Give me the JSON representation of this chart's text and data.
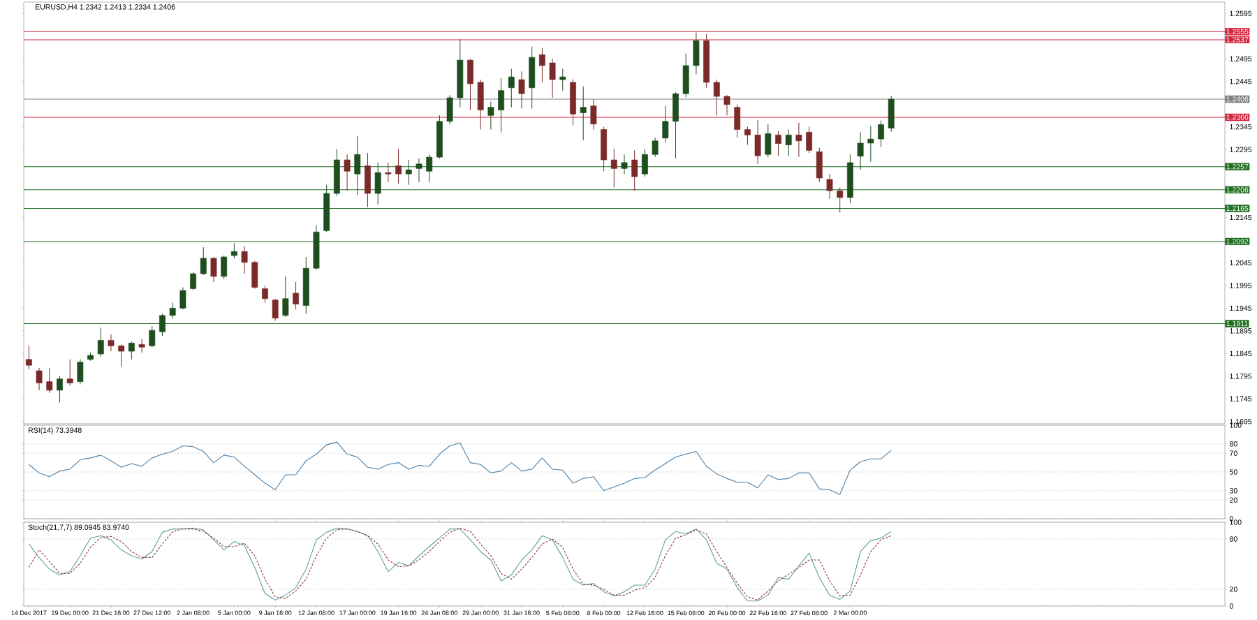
{
  "chart_data": [
    {
      "type": "candlestick",
      "title": "EURUSD,H4 1.2342 1.2413 1.2334 1.2406",
      "categories": [
        null,
        null,
        null,
        null,
        null,
        null,
        null,
        null,
        null,
        null,
        null,
        null,
        null,
        null,
        null,
        null,
        null,
        null,
        null,
        null,
        null,
        null,
        null,
        null,
        null,
        null,
        null,
        null,
        null,
        null,
        null,
        null,
        null,
        null,
        null,
        null,
        null,
        null,
        null,
        null,
        null,
        null,
        null,
        null,
        null,
        null,
        null,
        null,
        null,
        null,
        null,
        null,
        null,
        null,
        null,
        null,
        null,
        null,
        null,
        null,
        null,
        null,
        null,
        null,
        null,
        null,
        null,
        null,
        null,
        null,
        null,
        null,
        null,
        null,
        null,
        null,
        null,
        null,
        null,
        null,
        null,
        null,
        null,
        null,
        null,
        null,
        null,
        null,
        null,
        null,
        null,
        null,
        null,
        null,
        null,
        null,
        null,
        null,
        null,
        null,
        null,
        null,
        null,
        null,
        null,
        null,
        null,
        null,
        null,
        null,
        null,
        null,
        null,
        null,
        null,
        null,
        null
      ],
      "ohlc": [
        [
          1.1832,
          1.1862,
          1.181,
          1.1819
        ],
        [
          1.1807,
          1.1813,
          1.1764,
          1.178
        ],
        [
          1.1783,
          1.1813,
          1.1758,
          1.1764
        ],
        [
          1.1764,
          1.1795,
          1.1737,
          1.1789
        ],
        [
          1.1789,
          1.1832,
          1.1774,
          1.178
        ],
        [
          1.1783,
          1.1832,
          1.1777,
          1.1826
        ],
        [
          1.1832,
          1.1847,
          1.1829,
          1.1841
        ],
        [
          1.1844,
          1.1902,
          1.1838,
          1.1874
        ],
        [
          1.1874,
          1.1887,
          1.185,
          1.1862
        ],
        [
          1.1862,
          1.1865,
          1.1816,
          1.185
        ],
        [
          1.185,
          1.1871,
          1.1832,
          1.1868
        ],
        [
          1.1865,
          1.1877,
          1.1847,
          1.1859
        ],
        [
          1.1862,
          1.1905,
          1.1859,
          1.1896
        ],
        [
          1.1893,
          1.1933,
          1.1884,
          1.1929
        ],
        [
          1.1929,
          1.1957,
          1.1922,
          1.1945
        ],
        [
          1.1945,
          1.1991,
          1.1942,
          1.1984
        ],
        [
          1.1988,
          1.2024,
          1.1984,
          1.2021
        ],
        [
          1.2021,
          1.2079,
          1.2018,
          1.2055
        ],
        [
          1.2055,
          1.2058,
          1.2003,
          1.2015
        ],
        [
          1.2015,
          1.2061,
          1.2009,
          1.2058
        ],
        [
          1.2061,
          1.2088,
          1.2055,
          1.207
        ],
        [
          1.207,
          1.2082,
          1.2021,
          1.2046
        ],
        [
          1.2046,
          1.2049,
          1.1988,
          1.1991
        ],
        [
          1.1988,
          1.1995,
          1.1957,
          1.1966
        ],
        [
          1.1963,
          1.1966,
          1.1917,
          1.1923
        ],
        [
          1.1929,
          1.2015,
          1.1926,
          1.1966
        ],
        [
          1.1978,
          1.2003,
          1.1942,
          1.1954
        ],
        [
          1.1951,
          1.2058,
          1.1933,
          1.2033
        ],
        [
          1.2033,
          1.2128,
          1.203,
          1.2113
        ],
        [
          1.2116,
          1.2217,
          1.2113,
          1.2198
        ],
        [
          1.2198,
          1.2296,
          1.2192,
          1.2272
        ],
        [
          1.2272,
          1.2284,
          1.2204,
          1.2247
        ],
        [
          1.2241,
          1.2324,
          1.2195,
          1.2284
        ],
        [
          1.2259,
          1.2287,
          1.2168,
          1.2198
        ],
        [
          1.2198,
          1.2266,
          1.2174,
          1.2244
        ],
        [
          1.2244,
          1.2266,
          1.2223,
          1.2241
        ],
        [
          1.2259,
          1.2296,
          1.222,
          1.2241
        ],
        [
          1.2241,
          1.2272,
          1.2217,
          1.225
        ],
        [
          1.2253,
          1.2275,
          1.2223,
          1.2263
        ],
        [
          1.2247,
          1.2284,
          1.2223,
          1.2278
        ],
        [
          1.2278,
          1.237,
          1.2275,
          1.2357
        ],
        [
          1.2357,
          1.2415,
          1.235,
          1.2409
        ],
        [
          1.2409,
          1.2538,
          1.2388,
          1.2492
        ],
        [
          1.2492,
          1.2495,
          1.2382,
          1.244
        ],
        [
          1.2443,
          1.2449,
          1.2339,
          1.2382
        ],
        [
          1.237,
          1.24,
          1.2339,
          1.2388
        ],
        [
          1.2382,
          1.2452,
          1.2333,
          1.2425
        ],
        [
          1.2431,
          1.2473,
          1.2388,
          1.2455
        ],
        [
          1.2449,
          1.2467,
          1.2385,
          1.2418
        ],
        [
          1.2431,
          1.2522,
          1.2385,
          1.2498
        ],
        [
          1.2504,
          1.2519,
          1.2443,
          1.248
        ],
        [
          1.2486,
          1.2495,
          1.2409,
          1.2449
        ],
        [
          1.2449,
          1.2473,
          1.2425,
          1.2455
        ],
        [
          1.2443,
          1.245,
          1.2348,
          1.2373
        ],
        [
          1.2376,
          1.2434,
          1.2315,
          1.2388
        ],
        [
          1.2391,
          1.2406,
          1.2339,
          1.2351
        ],
        [
          1.2339,
          1.2345,
          1.2247,
          1.2272
        ],
        [
          1.2272,
          1.2296,
          1.2211,
          1.2253
        ],
        [
          1.2253,
          1.2284,
          1.2241,
          1.2266
        ],
        [
          1.2272,
          1.2293,
          1.2204,
          1.2235
        ],
        [
          1.2241,
          1.2296,
          1.2235,
          1.2284
        ],
        [
          1.2284,
          1.2321,
          1.2278,
          1.2314
        ],
        [
          1.232,
          1.2391,
          1.231,
          1.2357
        ],
        [
          1.2357,
          1.2421,
          1.2275,
          1.2418
        ],
        [
          1.2418,
          1.2507,
          1.241,
          1.248
        ],
        [
          1.248,
          1.2553,
          1.2461,
          1.2535
        ],
        [
          1.2535,
          1.255,
          1.2431,
          1.2443
        ],
        [
          1.2443,
          1.2449,
          1.237,
          1.2412
        ],
        [
          1.2412,
          1.2415,
          1.237,
          1.2394
        ],
        [
          1.2388,
          1.2394,
          1.2321,
          1.2339
        ],
        [
          1.2339,
          1.2345,
          1.2305,
          1.2327
        ],
        [
          1.2327,
          1.236,
          1.2263,
          1.2281
        ],
        [
          1.2284,
          1.2351,
          1.2278,
          1.233
        ],
        [
          1.2327,
          1.2336,
          1.2281,
          1.2308
        ],
        [
          1.2305,
          1.2339,
          1.2281,
          1.2327
        ],
        [
          1.2327,
          1.2354,
          1.2278,
          1.2314
        ],
        [
          1.2333,
          1.2345,
          1.2287,
          1.2293
        ],
        [
          1.229,
          1.2299,
          1.2223,
          1.2232
        ],
        [
          1.2229,
          1.2241,
          1.2186,
          1.2204
        ],
        [
          1.2204,
          1.2211,
          1.2156,
          1.2189
        ],
        [
          1.2189,
          1.2284,
          1.2177,
          1.2266
        ],
        [
          1.228,
          1.2333,
          1.225,
          1.2309
        ],
        [
          1.2309,
          1.2347,
          1.2268,
          1.2318
        ],
        [
          1.2318,
          1.2359,
          1.23,
          1.235
        ],
        [
          1.2342,
          1.2413,
          1.2334,
          1.2406
        ],
        null,
        null,
        null,
        null,
        null,
        null,
        null,
        null,
        null,
        null,
        null,
        null,
        null,
        null,
        null,
        null,
        null,
        null,
        null,
        null,
        null,
        null,
        null,
        null,
        null,
        null,
        null,
        null,
        null,
        null,
        null,
        null
      ],
      "colors": [
        "#7b2a2a",
        "#7b2a2a",
        "#7b2a2a",
        "#1e4d1e",
        "#7b2a2a",
        "#1e4d1e",
        "#1e4d1e",
        "#1e4d1e",
        "#7b2a2a",
        "#7b2a2a",
        "#1e4d1e",
        "#7b2a2a",
        "#1e4d1e",
        "#1e4d1e",
        "#1e4d1e",
        "#1e4d1e",
        "#1e4d1e",
        "#1e4d1e",
        "#7b2a2a",
        "#1e4d1e",
        "#1e4d1e",
        "#7b2a2a",
        "#7b2a2a",
        "#7b2a2a",
        "#7b2a2a",
        "#1e4d1e",
        "#7b2a2a",
        "#1e4d1e",
        "#1e4d1e",
        "#1e4d1e",
        "#1e4d1e",
        "#7b2a2a",
        "#1e4d1e",
        "#7b2a2a",
        "#1e4d1e",
        "#7b2a2a",
        "#7b2a2a",
        "#1e4d1e",
        "#1e4d1e",
        "#1e4d1e",
        "#1e4d1e",
        "#1e4d1e",
        "#1e4d1e",
        "#7b2a2a",
        "#7b2a2a",
        "#1e4d1e",
        "#1e4d1e",
        "#1e4d1e",
        "#7b2a2a",
        "#1e4d1e",
        "#7b2a2a",
        "#7b2a2a",
        "#1e4d1e",
        "#7b2a2a",
        "#1e4d1e",
        "#7b2a2a",
        "#7b2a2a",
        "#7b2a2a",
        "#1e4d1e",
        "#7b2a2a",
        "#1e4d1e",
        "#1e4d1e",
        "#1e4d1e",
        "#1e4d1e",
        "#1e4d1e",
        "#1e4d1e",
        "#7b2a2a",
        "#7b2a2a",
        "#7b2a2a",
        "#7b2a2a",
        "#7b2a2a",
        "#7b2a2a",
        "#1e4d1e",
        "#7b2a2a",
        "#1e4d1e",
        "#7b2a2a",
        "#7b2a2a",
        "#7b2a2a",
        "#7b2a2a",
        "#7b2a2a",
        "#1e4d1e",
        "#1e4d1e",
        "#1e4d1e",
        "#1e4d1e",
        "#1e4d1e",
        null,
        null,
        null,
        null,
        null,
        null,
        null,
        null,
        null,
        null,
        null,
        null,
        null,
        null,
        null,
        null,
        null,
        null,
        null,
        null,
        null,
        null,
        null,
        null,
        null,
        null,
        null,
        null,
        null,
        null,
        null,
        null
      ],
      "ylim": [
        1.169,
        1.262
      ],
      "yticks": [
        1.1695,
        1.1745,
        1.1795,
        1.1845,
        1.1895,
        1.1945,
        1.1995,
        1.2045,
        1.2145,
        1.2295,
        1.2345,
        1.2445,
        1.2495,
        1.2595
      ],
      "ref_lines": [
        {
          "axis": "y",
          "value": 1.2555,
          "label": "1.2555",
          "color": "#d2283e"
        },
        {
          "axis": "y",
          "value": 1.2537,
          "label": "1.2537",
          "color": "#d2283e"
        },
        {
          "axis": "y",
          "value": 1.2406,
          "label": "1.2406",
          "color": "#808080"
        },
        {
          "axis": "y",
          "value": 1.2366,
          "label": "1.2366",
          "color": "#d2283e"
        },
        {
          "axis": "y",
          "value": 1.2257,
          "label": "1.2257",
          "color": "#1e6e1e"
        },
        {
          "axis": "y",
          "value": 1.2206,
          "label": "1.2206",
          "color": "#1e6e1e"
        },
        {
          "axis": "y",
          "value": 1.2165,
          "label": "1.2165",
          "color": "#1e6e1e"
        },
        {
          "axis": "y",
          "value": 1.2092,
          "label": "1.2092",
          "color": "#1e6e1e"
        },
        {
          "axis": "y",
          "value": 1.1911,
          "label": "1.1911",
          "color": "#1e6e1e"
        }
      ],
      "tick_labels": "y"
    },
    {
      "type": "line",
      "title": "RSI(14) 73.3948",
      "categories": [
        null,
        null,
        null,
        null,
        null,
        null,
        null,
        null,
        null,
        null,
        null,
        null,
        null,
        null,
        null,
        null,
        null,
        null,
        null,
        null,
        null,
        null,
        null,
        null,
        null,
        null,
        null,
        null,
        null,
        null,
        null,
        null,
        null,
        null,
        null,
        null,
        null,
        null,
        null,
        null,
        null,
        null,
        null,
        null,
        null,
        null,
        null,
        null,
        null,
        null,
        null,
        null,
        null,
        null,
        null,
        null,
        null,
        null,
        null,
        null,
        null,
        null,
        null,
        null,
        null,
        null,
        null,
        null,
        null,
        null,
        null,
        null,
        null,
        null,
        null,
        null,
        null,
        null,
        null,
        null,
        null,
        null,
        null,
        null,
        null,
        null,
        null,
        null,
        null,
        null,
        null,
        null,
        null,
        null,
        null,
        null,
        null,
        null,
        null,
        null,
        null,
        null,
        null,
        null,
        null,
        null,
        null,
        null,
        null,
        null,
        null,
        null,
        null,
        null,
        null,
        null,
        null
      ],
      "series": [
        {
          "color": "#4a7fa8",
          "values": [
            58,
            49,
            45,
            51,
            53,
            63,
            65,
            68,
            62,
            55,
            59,
            56,
            65,
            69,
            72,
            78,
            77,
            72,
            60,
            68,
            66,
            56,
            47,
            38,
            31,
            47,
            47,
            62,
            69,
            79,
            82,
            69,
            66,
            55,
            53,
            58,
            60,
            53,
            57,
            56,
            69,
            78,
            81,
            60,
            58,
            49,
            51,
            60,
            51,
            53,
            65,
            53,
            52,
            38,
            43,
            45,
            30,
            34,
            38,
            43,
            44,
            52,
            59,
            66,
            69,
            72,
            56,
            48,
            43,
            39,
            39,
            33,
            47,
            42,
            43,
            49,
            49,
            32,
            31,
            26,
            52,
            61,
            64,
            64,
            73,
            null,
            null,
            null,
            null,
            null,
            null,
            null,
            null,
            null,
            null,
            null,
            null,
            null,
            null,
            null,
            null,
            null,
            null,
            null,
            null,
            null,
            null,
            null,
            null,
            null,
            null,
            null,
            null,
            null,
            null,
            null,
            null
          ]
        }
      ],
      "ylim": [
        0,
        100
      ],
      "yticks": [
        0,
        20,
        30,
        50,
        70,
        80,
        100
      ],
      "grid": "y",
      "tick_labels": "y"
    },
    {
      "type": "line",
      "title": "Stoch(21,7,7) 89.0945 83.9740",
      "categories": [
        "14 Dec 2017",
        null,
        null,
        null,
        "19 Dec 00:00",
        null,
        null,
        null,
        "21 Dec 16:00",
        null,
        null,
        null,
        "27 Dec 12:00",
        null,
        null,
        null,
        "2 Jan 08:00",
        null,
        null,
        null,
        "5 Jan 00:00",
        null,
        null,
        null,
        "9 Jan 16:00",
        null,
        null,
        null,
        "12 Jan 08:00",
        null,
        null,
        null,
        "17 Jan 00:00",
        null,
        null,
        null,
        "19 Jan 16:00",
        null,
        null,
        null,
        "24 Jan 08:00",
        null,
        null,
        null,
        "29 Jan 00:00",
        null,
        null,
        null,
        "31 Jan 16:00",
        null,
        null,
        null,
        "5 Feb 08:00",
        null,
        null,
        null,
        "8 Feb 00:00",
        null,
        null,
        null,
        "12 Feb 16:00",
        null,
        null,
        null,
        "15 Feb 08:00",
        null,
        null,
        null,
        "20 Feb 00:00",
        null,
        null,
        null,
        "22 Feb 16:00",
        null,
        null,
        null,
        "27 Feb 08:00",
        null,
        null,
        null,
        "2 Mar 00:00",
        null,
        null,
        null,
        null,
        null,
        null,
        null,
        null,
        null,
        null,
        null,
        null,
        null,
        null,
        null,
        null,
        null,
        null,
        null,
        null,
        null,
        null,
        null,
        null,
        null,
        null,
        null,
        null,
        null,
        null,
        null,
        null,
        null,
        null,
        null,
        null
      ],
      "series": [
        {
          "color": "#5f9ea0",
          "values": [
            74,
            58,
            44,
            37,
            41,
            60,
            81,
            84,
            79,
            67,
            60,
            56,
            65,
            88,
            92,
            92,
            93,
            91,
            79,
            67,
            77,
            72,
            46,
            15,
            7,
            13,
            22,
            44,
            79,
            88,
            93,
            92,
            89,
            84,
            65,
            41,
            52,
            48,
            60,
            71,
            81,
            92,
            92,
            79,
            65,
            55,
            30,
            37,
            55,
            67,
            84,
            79,
            58,
            32,
            25,
            27,
            17,
            12,
            17,
            25,
            25,
            44,
            79,
            89,
            86,
            92,
            79,
            51,
            44,
            22,
            6,
            6,
            13,
            34,
            32,
            48,
            63,
            34,
            13,
            8,
            18,
            65,
            78,
            81,
            89,
            null,
            null,
            null,
            null,
            null,
            null,
            null,
            null,
            null,
            null,
            null,
            null,
            null,
            null,
            null,
            null,
            null,
            null,
            null,
            null,
            null,
            null,
            null,
            null,
            null,
            null,
            null,
            null,
            null,
            null,
            null,
            null
          ]
        },
        {
          "color": "#8b3a3a",
          "line_style": "dashed",
          "values": [
            46,
            67,
            53,
            39,
            39,
            51,
            70,
            82,
            83,
            77,
            65,
            58,
            58,
            74,
            89,
            92,
            92,
            89,
            81,
            71,
            71,
            75,
            60,
            32,
            11,
            9,
            18,
            32,
            60,
            81,
            91,
            92,
            89,
            84,
            74,
            55,
            47,
            48,
            55,
            65,
            77,
            88,
            93,
            89,
            74,
            60,
            39,
            32,
            44,
            58,
            74,
            80,
            70,
            44,
            26,
            25,
            20,
            13,
            13,
            19,
            22,
            34,
            60,
            81,
            85,
            91,
            86,
            65,
            46,
            27,
            11,
            7,
            18,
            30,
            38,
            46,
            55,
            55,
            30,
            12,
            13,
            37,
            65,
            79,
            84,
            null,
            null,
            null,
            null,
            null,
            null,
            null,
            null,
            null,
            null,
            null,
            null,
            null,
            null,
            null,
            null,
            null,
            null,
            null,
            null,
            null,
            null,
            null,
            null,
            null,
            null,
            null,
            null,
            null,
            null,
            null,
            null
          ]
        }
      ],
      "ylim": [
        0,
        100
      ],
      "yticks": [
        0,
        20,
        80,
        100
      ],
      "grid": "y"
    }
  ]
}
